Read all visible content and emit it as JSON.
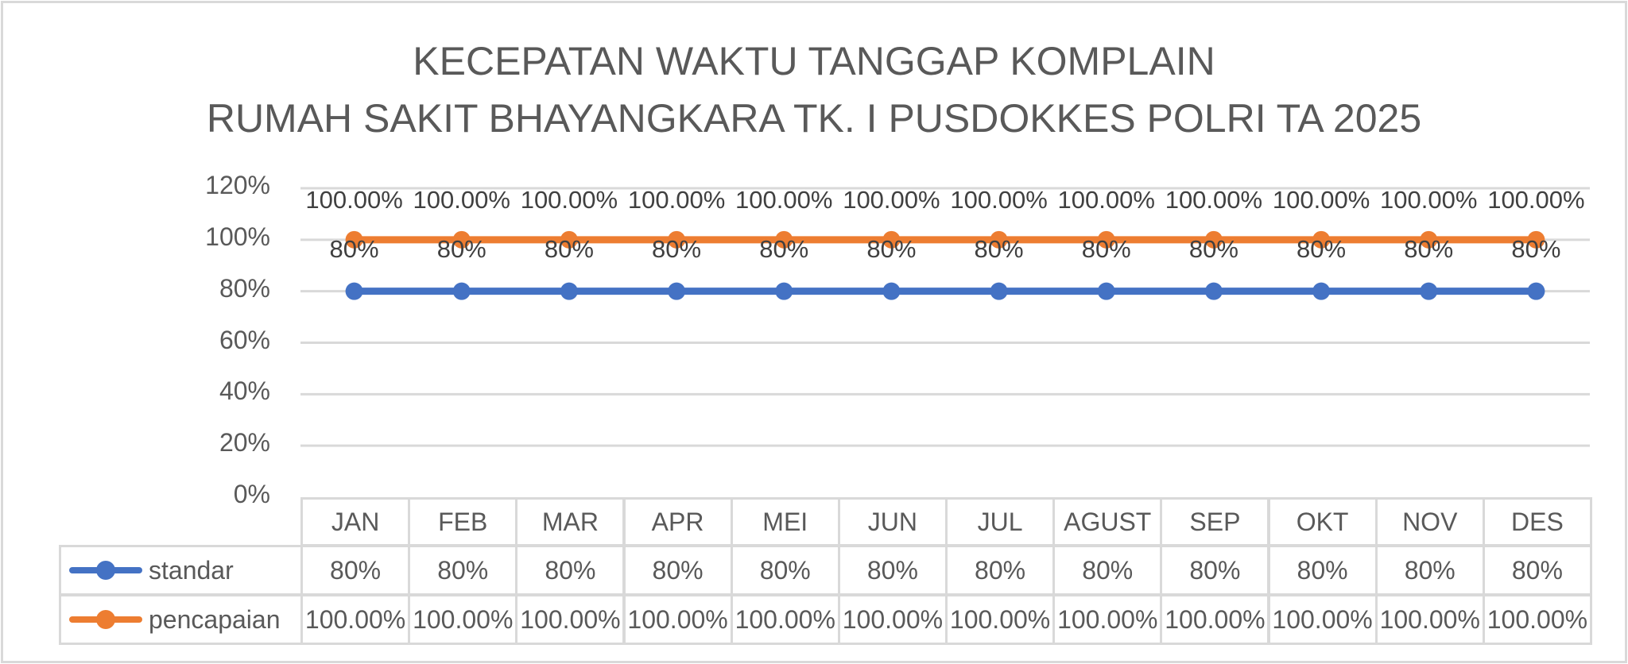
{
  "chart_data": {
    "type": "line",
    "title": "KECEPATAN WAKTU TANGGAP KOMPLAIN",
    "subtitle": "RUMAH SAKIT BHAYANGKARA TK. I PUSDOKKES POLRI TA 2025",
    "categories": [
      "JAN",
      "FEB",
      "MAR",
      "APR",
      "MEI",
      "JUN",
      "JUL",
      "AGUST",
      "SEP",
      "OKT",
      "NOV",
      "DES"
    ],
    "series": [
      {
        "name": "standar",
        "color": "#4472c4",
        "values": [
          80,
          80,
          80,
          80,
          80,
          80,
          80,
          80,
          80,
          80,
          80,
          80
        ],
        "labels": [
          "80%",
          "80%",
          "80%",
          "80%",
          "80%",
          "80%",
          "80%",
          "80%",
          "80%",
          "80%",
          "80%",
          "80%"
        ]
      },
      {
        "name": "pencapaian",
        "color": "#ed7d31",
        "values": [
          100,
          100,
          100,
          100,
          100,
          100,
          100,
          100,
          100,
          100,
          100,
          100
        ],
        "labels": [
          "100.00%",
          "100.00%",
          "100.00%",
          "100.00%",
          "100.00%",
          "100.00%",
          "100.00%",
          "100.00%",
          "100.00%",
          "100.00%",
          "100.00%",
          "100.00%"
        ]
      }
    ],
    "xlabel": "",
    "ylabel": "",
    "ylim": [
      0,
      120
    ],
    "yticks": [
      "0%",
      "20%",
      "40%",
      "60%",
      "80%",
      "100%",
      "120%"
    ],
    "grid": true,
    "legend_position": "data-table"
  },
  "title": {
    "line1": "KECEPATAN WAKTU TANGGAP KOMPLAIN",
    "line2": "RUMAH SAKIT BHAYANGKARA TK. I PUSDOKKES POLRI TA 2025"
  },
  "colors": {
    "standar": "#4472c4",
    "pencapaian": "#ed7d31",
    "grid": "#d9d9d9",
    "text": "#595959"
  }
}
